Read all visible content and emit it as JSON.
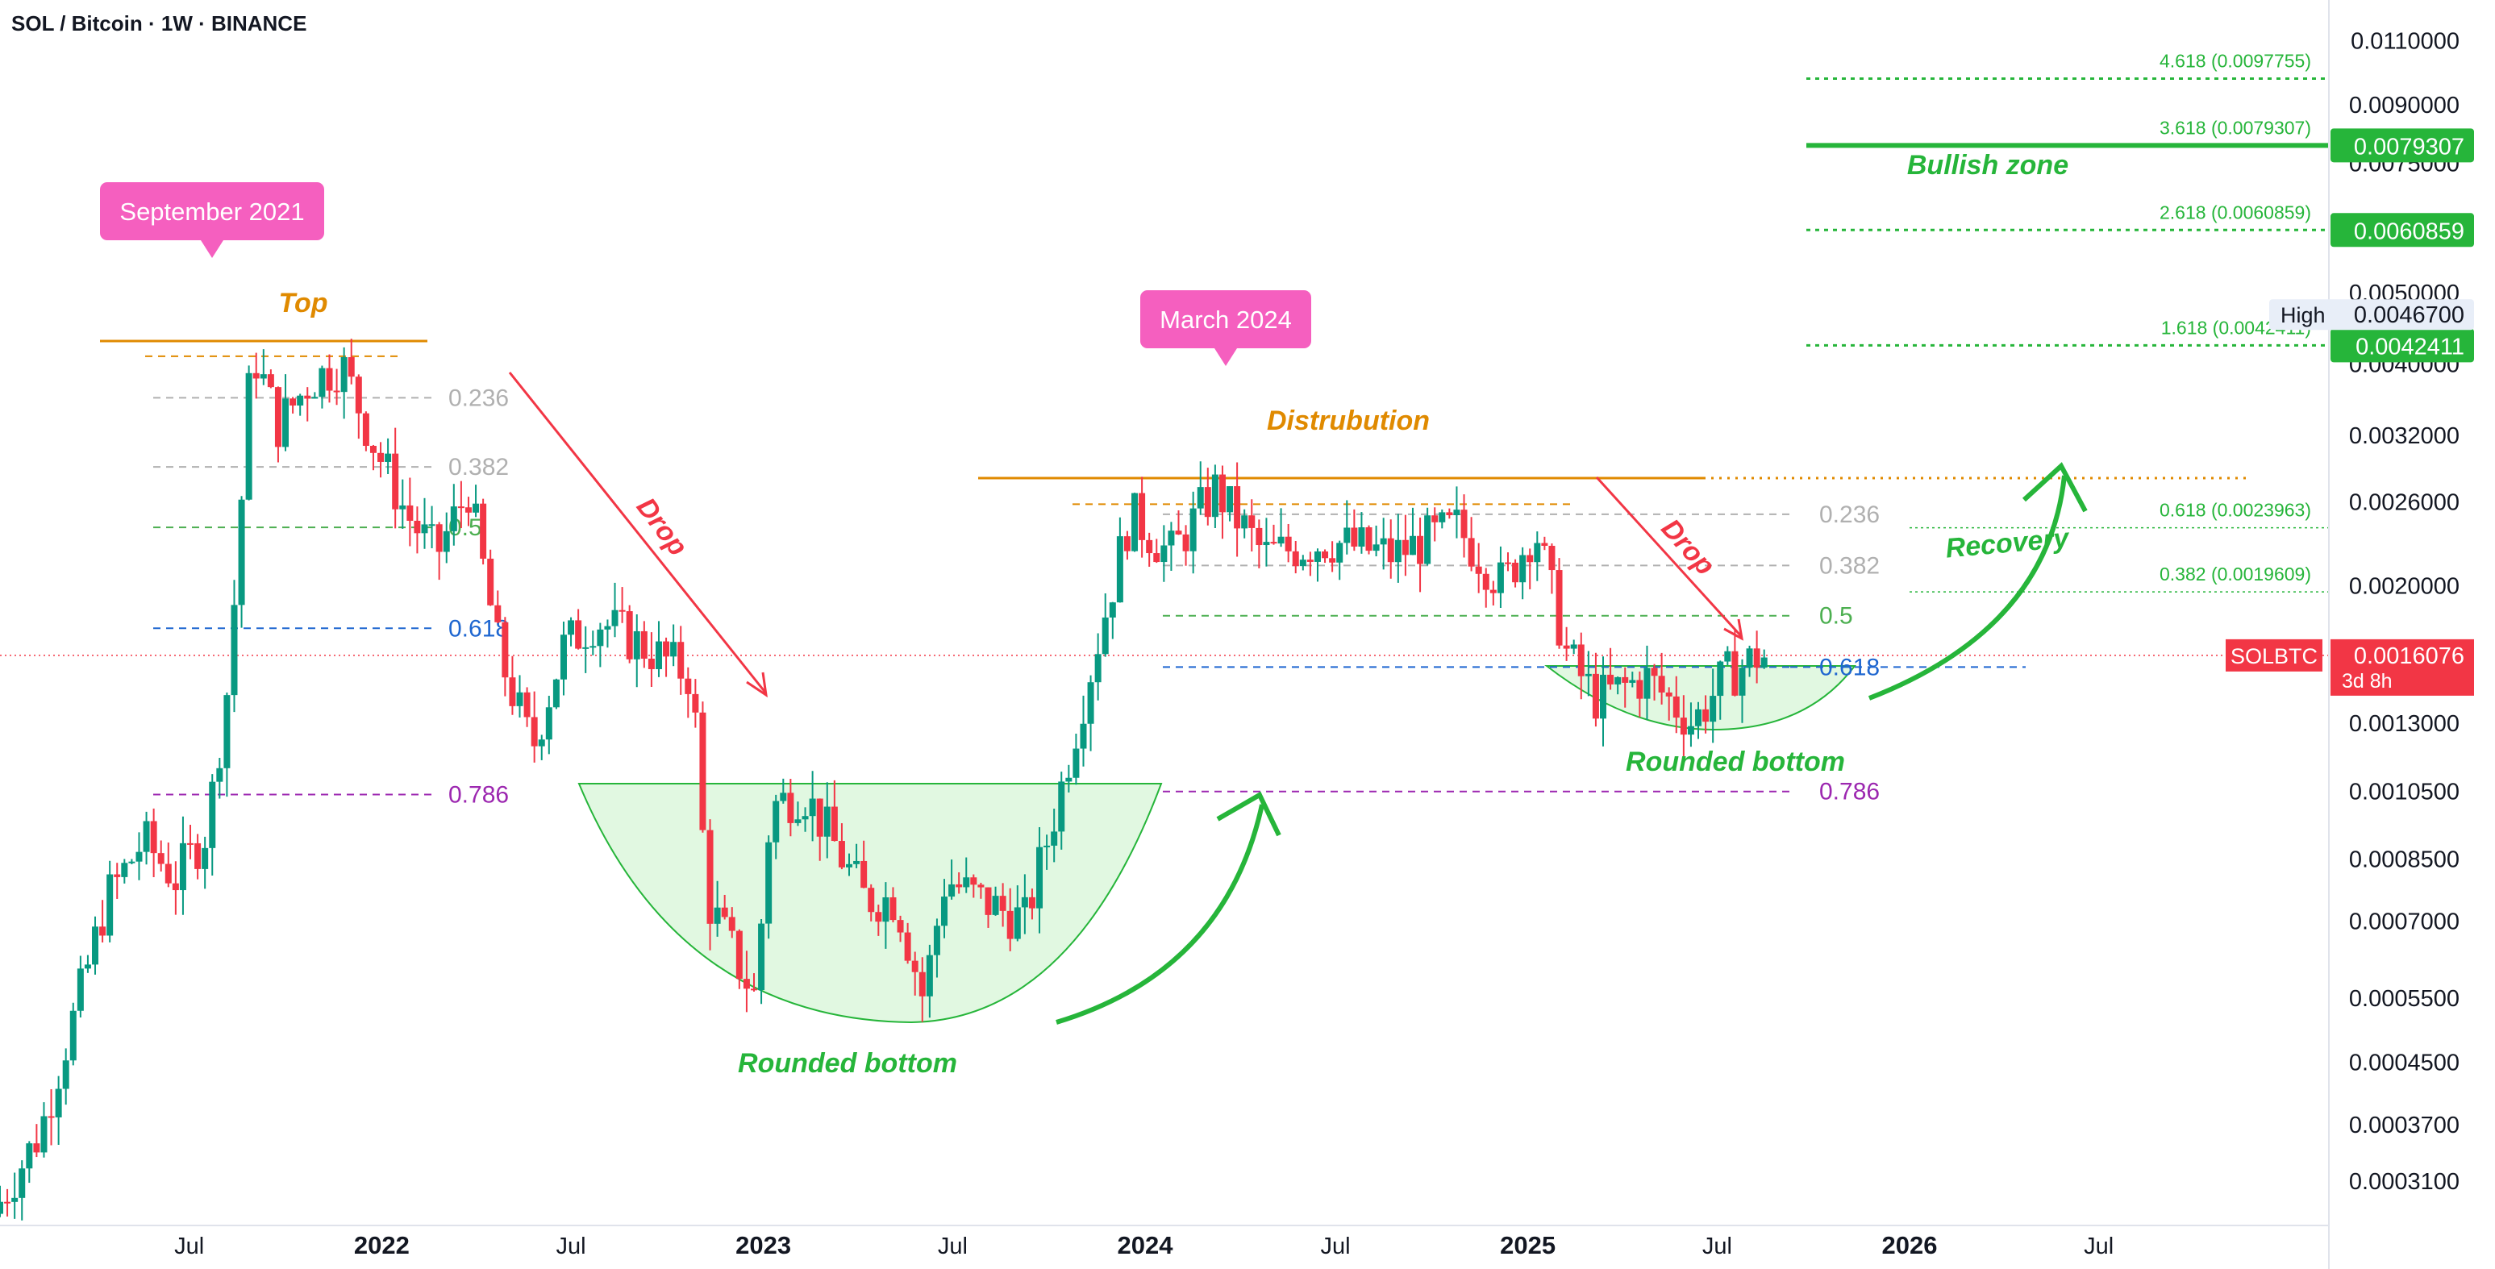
{
  "header": {
    "title": "SOL / Bitcoin · 1W · BINANCE"
  },
  "colors": {
    "up": "#089981",
    "down": "#f23645",
    "fibGreen": "#4caf50",
    "fibBlue": "#1e66d0",
    "fibPurple": "#9c27b0",
    "fibGray": "#b0b0b0",
    "orange": "#e08a00",
    "green": "#26b53a",
    "pink": "#f55fbf",
    "red": "#f23645",
    "axisText": "#131722"
  },
  "chart_data": {
    "type": "candlestick",
    "symbol": "SOLBTC",
    "scale": "log",
    "ylim": [
      0.00027,
      0.0125
    ],
    "price_axis_ticks": [
      0.011,
      0.009,
      0.0075,
      0.006,
      0.005,
      0.004,
      0.0032,
      0.0026,
      0.002,
      0.0013,
      0.00105,
      0.00085,
      0.0007,
      0.00055,
      0.00045,
      0.00037,
      0.00031
    ],
    "time_axis_ticks": [
      {
        "label": "Jul",
        "date": "2021-07-01"
      },
      {
        "label": "2022",
        "date": "2022-01-01"
      },
      {
        "label": "Jul",
        "date": "2022-07-01"
      },
      {
        "label": "2023",
        "date": "2023-01-01"
      },
      {
        "label": "Jul",
        "date": "2023-07-01"
      },
      {
        "label": "2024",
        "date": "2024-01-01"
      },
      {
        "label": "Jul",
        "date": "2024-07-01"
      },
      {
        "label": "2025",
        "date": "2025-01-01"
      },
      {
        "label": "Jul",
        "date": "2025-07-01"
      },
      {
        "label": "2026",
        "date": "2026-01-01"
      },
      {
        "label": "Jul",
        "date": "2026-07-01"
      }
    ],
    "price_path": [
      [
        "2021-01-01",
        0.00028
      ],
      [
        "2021-02-15",
        0.00036
      ],
      [
        "2021-03-20",
        0.00052
      ],
      [
        "2021-04-20",
        0.00075
      ],
      [
        "2021-05-25",
        0.0009
      ],
      [
        "2021-06-25",
        0.0008
      ],
      [
        "2021-07-25",
        0.00093
      ],
      [
        "2021-08-15",
        0.0015
      ],
      [
        "2021-09-06",
        0.0042
      ],
      [
        "2021-10-01",
        0.0033
      ],
      [
        "2021-11-01",
        0.0038
      ],
      [
        "2021-12-01",
        0.004
      ],
      [
        "2022-01-01",
        0.0031
      ],
      [
        "2022-02-01",
        0.0025
      ],
      [
        "2022-03-01",
        0.0022
      ],
      [
        "2022-04-01",
        0.0027
      ],
      [
        "2022-05-01",
        0.0016
      ],
      [
        "2022-06-01",
        0.0012
      ],
      [
        "2022-07-01",
        0.00165
      ],
      [
        "2022-08-01",
        0.0018
      ],
      [
        "2022-09-01",
        0.0017
      ],
      [
        "2022-10-01",
        0.0016
      ],
      [
        "2022-11-01",
        0.0015
      ],
      [
        "2022-11-15",
        0.00075
      ],
      [
        "2022-12-31",
        0.00055
      ],
      [
        "2023-01-15",
        0.001
      ],
      [
        "2023-02-15",
        0.00105
      ],
      [
        "2023-03-15",
        0.0009
      ],
      [
        "2023-04-15",
        0.00075
      ],
      [
        "2023-05-15",
        0.00075
      ],
      [
        "2023-06-10",
        0.00055
      ],
      [
        "2023-07-01",
        0.0008
      ],
      [
        "2023-08-01",
        0.00075
      ],
      [
        "2023-09-15",
        0.0007
      ],
      [
        "2023-10-15",
        0.001
      ],
      [
        "2023-11-15",
        0.0015
      ],
      [
        "2023-12-25",
        0.0025
      ],
      [
        "2024-02-01",
        0.0022
      ],
      [
        "2024-03-15",
        0.0027
      ],
      [
        "2024-05-01",
        0.0022
      ],
      [
        "2024-07-01",
        0.0023
      ],
      [
        "2024-09-01",
        0.0022
      ],
      [
        "2024-11-01",
        0.0024
      ],
      [
        "2024-12-15",
        0.002
      ],
      [
        "2025-01-15",
        0.0024
      ],
      [
        "2025-02-15",
        0.0016
      ],
      [
        "2025-03-15",
        0.0014
      ],
      [
        "2025-05-01",
        0.0015
      ],
      [
        "2025-06-15",
        0.0013
      ],
      [
        "2025-07-15",
        0.0015
      ],
      [
        "2025-08-15",
        0.0016
      ]
    ],
    "fib_left": [
      {
        "label": "0.236",
        "value": 0.0036,
        "color": "#b0b0b0"
      },
      {
        "label": "0.382",
        "value": 0.0029,
        "color": "#b0b0b0"
      },
      {
        "label": "0.5",
        "value": 0.0024,
        "color": "#4caf50"
      },
      {
        "label": "0.618",
        "value": 0.00175,
        "color": "#1e66d0"
      },
      {
        "label": "0.786",
        "value": 0.00104,
        "color": "#9c27b0"
      }
    ],
    "fib_mid": [
      {
        "label": "0.236",
        "value": 0.0025,
        "color": "#b0b0b0"
      },
      {
        "label": "0.382",
        "value": 0.00213,
        "color": "#b0b0b0"
      },
      {
        "label": "0.5",
        "value": 0.00182,
        "color": "#4caf50"
      },
      {
        "label": "0.618",
        "value": 0.00155,
        "color": "#1e66d0"
      },
      {
        "label": "0.786",
        "value": 0.00105,
        "color": "#9c27b0"
      }
    ],
    "fib_ext": [
      {
        "label": "4.618 (0.0097755)",
        "value": 0.0097755
      },
      {
        "label": "3.618 (0.0079307)",
        "value": 0.0079307
      },
      {
        "label": "2.618 (0.0060859)",
        "value": 0.0060859
      },
      {
        "label": "1.618 (0.0042411)",
        "value": 0.0042411
      },
      {
        "label": "0.618 (0.0023963)",
        "value": 0.0023963
      },
      {
        "label": "0.382 (0.0019609)",
        "value": 0.0019609
      }
    ],
    "top_level": 0.0043,
    "distribution_level": 0.0028,
    "current_price": 0.0016076,
    "annotations": {
      "september_2021": "September 2021",
      "march_2024": "March 2024",
      "top": "Top",
      "distrubution": "Distrubution",
      "drop": "Drop",
      "rounded_bottom": "Rounded bottom",
      "recovery": "Recovery",
      "bullish_zone": "Bullish zone"
    },
    "price_labels": [
      {
        "text": "0.0079307",
        "value": 0.0079307,
        "bg": "#26b53a"
      },
      {
        "text": "0.0060859",
        "value": 0.0060859,
        "bg": "#26b53a"
      },
      {
        "text": "0.0042411",
        "value": 0.0042411,
        "bg": "#26b53a"
      }
    ],
    "high_label": {
      "tag": "High",
      "text": "0.0046700",
      "value": 0.00467
    },
    "symbol_label": {
      "tag": "SOLBTC",
      "text": "0.0016076",
      "countdown": "3d 8h",
      "value": 0.0016076
    }
  }
}
